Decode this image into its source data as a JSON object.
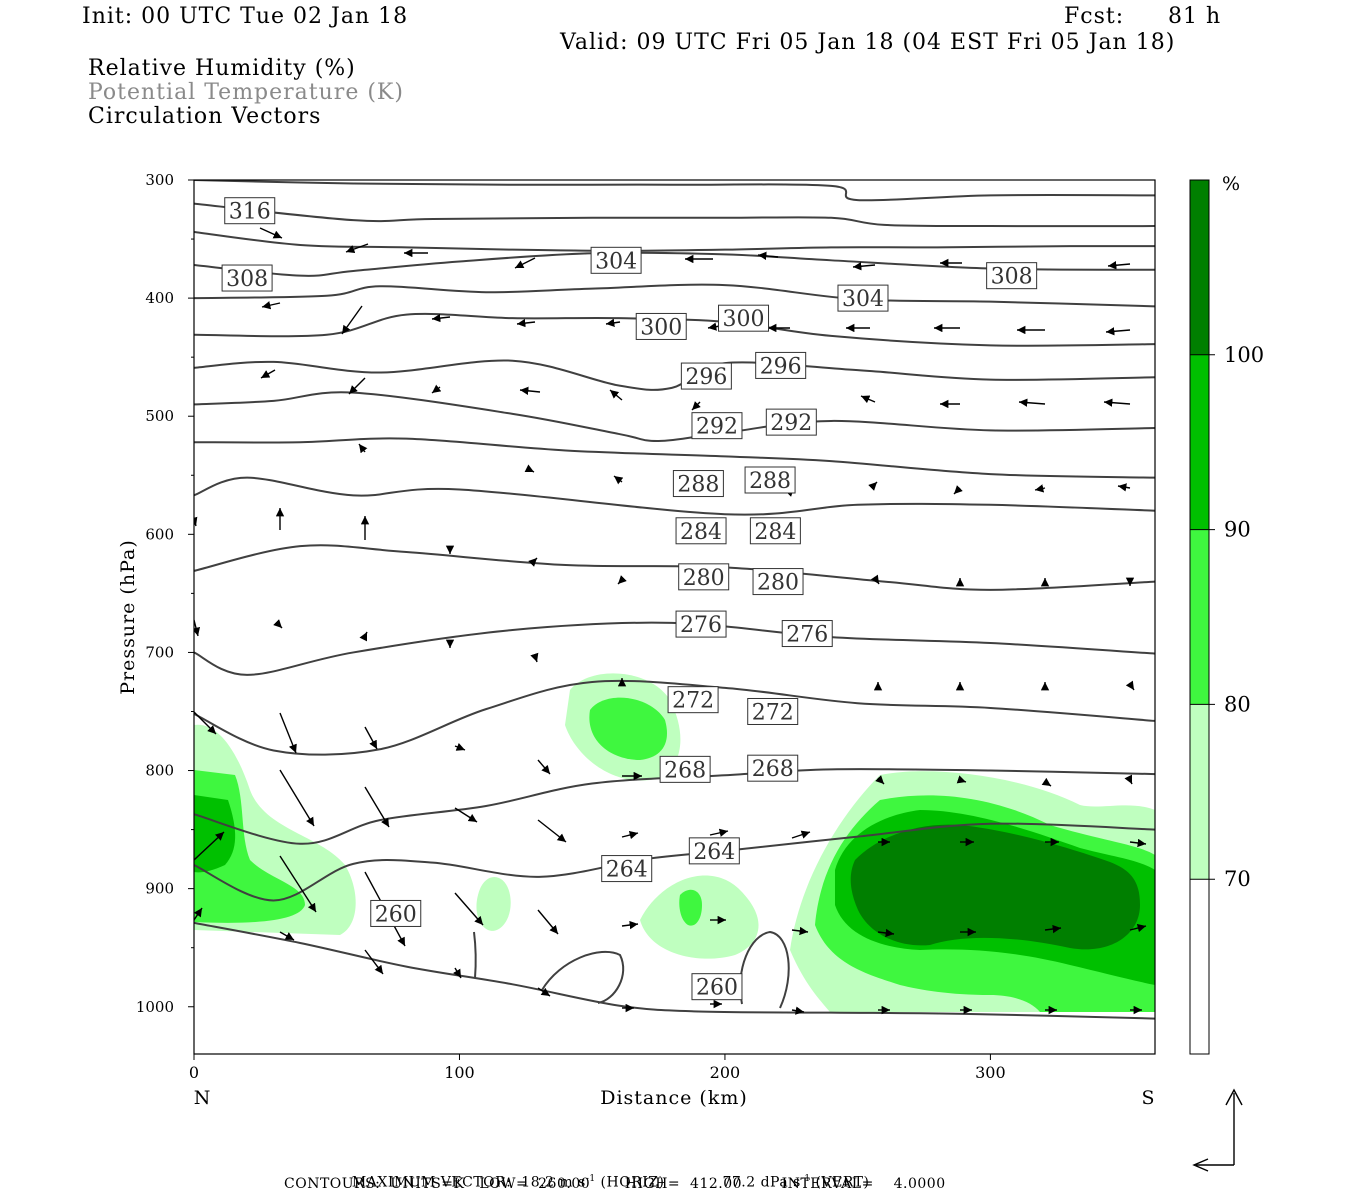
{
  "header": {
    "init": "Init: 00 UTC Tue 02 Jan 18",
    "fcst_label": "Fcst:",
    "fcst_value": "81 h",
    "valid": "Valid: 09 UTC Fri 05 Jan 18 (04 EST Fri 05 Jan 18)",
    "fields": [
      "Relative Humidity (%)",
      "Potential Temperature (K)",
      "Circulation Vectors"
    ]
  },
  "footer": {
    "line1_left": "MAXIMUM VECTOR:  18.2 m s",
    "line1_mid": " (HORIZ)",
    "line1_right": "77.2 dPa s",
    "line1_end": " (VERT)",
    "exp": "-1",
    "line2": "CONTOURS:  UNITS=K   LOW=  260.00       HIGH=  412.00        INTERVAL=    4.0000"
  },
  "colors": {
    "rh70": "#bfffbf",
    "rh80": "#3ff73f",
    "rh90": "#00c000",
    "rh100": "#007f00",
    "contour": "#404040",
    "muted_text": "#8a8a8a"
  },
  "chart_data": {
    "type": "cross-section contour",
    "xlabel": "Distance (km)",
    "ylabel": "Pressure (hPa)",
    "x_end_left": "N",
    "x_end_right": "S",
    "xlim": [
      0,
      362
    ],
    "ylim": [
      1040,
      300
    ],
    "x_ticks": [
      0,
      100,
      200,
      300
    ],
    "y_ticks": [
      300,
      400,
      500,
      600,
      700,
      800,
      900,
      1000
    ],
    "colorbar": {
      "unit": "%",
      "levels": [
        70,
        80,
        90,
        100
      ],
      "colors": [
        "#ffffff",
        "#bfffbf",
        "#3ff73f",
        "#00c000",
        "#007f00"
      ]
    },
    "contour_labels": [
      {
        "value": "316",
        "x": 21,
        "p": 326
      },
      {
        "value": "308",
        "x": 20,
        "p": 383
      },
      {
        "value": "304",
        "x": 159,
        "p": 368
      },
      {
        "value": "308",
        "x": 308,
        "p": 381
      },
      {
        "value": "304",
        "x": 252,
        "p": 400
      },
      {
        "value": "300",
        "x": 176,
        "p": 424
      },
      {
        "value": "300",
        "x": 207,
        "p": 417
      },
      {
        "value": "296",
        "x": 193,
        "p": 466
      },
      {
        "value": "296",
        "x": 221,
        "p": 457
      },
      {
        "value": "292",
        "x": 197,
        "p": 508
      },
      {
        "value": "292",
        "x": 225,
        "p": 505
      },
      {
        "value": "288",
        "x": 190,
        "p": 557
      },
      {
        "value": "288",
        "x": 217,
        "p": 554
      },
      {
        "value": "284",
        "x": 191,
        "p": 597
      },
      {
        "value": "284",
        "x": 219,
        "p": 597
      },
      {
        "value": "280",
        "x": 192,
        "p": 636
      },
      {
        "value": "280",
        "x": 220,
        "p": 640
      },
      {
        "value": "276",
        "x": 191,
        "p": 676
      },
      {
        "value": "276",
        "x": 231,
        "p": 684
      },
      {
        "value": "272",
        "x": 188,
        "p": 740
      },
      {
        "value": "272",
        "x": 218,
        "p": 750
      },
      {
        "value": "268",
        "x": 185,
        "p": 799
      },
      {
        "value": "268",
        "x": 218,
        "p": 798
      },
      {
        "value": "264",
        "x": 163,
        "p": 883
      },
      {
        "value": "264",
        "x": 196,
        "p": 868
      },
      {
        "value": "260",
        "x": 76,
        "p": 921
      },
      {
        "value": "260",
        "x": 197,
        "p": 983
      }
    ],
    "theta_contours_hPa": [
      {
        "x": [
          0,
          60,
          120,
          180,
          240,
          250,
          300,
          362
        ],
        "p": [
          300,
          303,
          304,
          304,
          305,
          317,
          313,
          313
        ]
      },
      {
        "x": [
          0,
          60,
          90,
          150,
          200,
          240,
          260,
          300,
          362
        ],
        "p": [
          320,
          334,
          333,
          332,
          332,
          332,
          338,
          339,
          339
        ]
      },
      {
        "x": [
          0,
          40,
          80,
          120,
          160,
          200,
          240,
          280,
          330,
          362
        ],
        "p": [
          344,
          355,
          357,
          359,
          360,
          359,
          357,
          357,
          356,
          356
        ]
      },
      {
        "x": [
          0,
          40,
          60,
          100,
          150,
          200,
          240,
          300,
          362
        ],
        "p": [
          372,
          381,
          377,
          369,
          362,
          363,
          368,
          375,
          376
        ]
      },
      {
        "x": [
          0,
          50,
          70,
          110,
          150,
          200,
          250,
          300,
          362
        ],
        "p": [
          400,
          398,
          390,
          395,
          392,
          389,
          401,
          403,
          407
        ]
      },
      {
        "x": [
          0,
          50,
          80,
          120,
          160,
          200,
          240,
          300,
          362
        ],
        "p": [
          431,
          431,
          414,
          417,
          417,
          420,
          432,
          440,
          439
        ]
      },
      {
        "x": [
          0,
          30,
          70,
          120,
          160,
          180,
          200,
          250,
          300,
          362
        ],
        "p": [
          459,
          454,
          463,
          453,
          474,
          476,
          455,
          461,
          469,
          467
        ]
      },
      {
        "x": [
          0,
          30,
          60,
          120,
          160,
          175,
          200,
          240,
          300,
          362
        ],
        "p": [
          490,
          487,
          480,
          498,
          515,
          521,
          514,
          504,
          512,
          510
        ]
      },
      {
        "x": [
          0,
          40,
          80,
          140,
          200,
          240,
          300,
          362
        ],
        "p": [
          522,
          522,
          519,
          529,
          534,
          538,
          549,
          552
        ]
      },
      {
        "x": [
          0,
          20,
          60,
          100,
          200,
          250,
          300,
          362
        ],
        "p": [
          567,
          552,
          567,
          562,
          583,
          575,
          575,
          580
        ]
      },
      {
        "x": [
          0,
          40,
          80,
          140,
          200,
          260,
          300,
          362
        ],
        "p": [
          631,
          610,
          615,
          626,
          628,
          640,
          647,
          640
        ]
      },
      {
        "x": [
          0,
          20,
          60,
          120,
          180,
          240,
          300,
          362
        ],
        "p": [
          700,
          719,
          700,
          681,
          675,
          687,
          692,
          701
        ]
      },
      {
        "x": [
          0,
          30,
          70,
          110,
          150,
          200,
          250,
          300,
          362
        ],
        "p": [
          752,
          783,
          782,
          748,
          725,
          730,
          743,
          747,
          758
        ]
      },
      {
        "x": [
          0,
          40,
          70,
          110,
          150,
          200,
          240,
          300,
          362
        ],
        "p": [
          837,
          862,
          842,
          830,
          811,
          804,
          799,
          800,
          803
        ]
      },
      {
        "x": [
          0,
          30,
          60,
          90,
          130,
          170,
          200,
          250,
          300,
          362
        ],
        "p": [
          880,
          910,
          879,
          878,
          890,
          875,
          868,
          856,
          845,
          850
        ]
      },
      {
        "x": [
          0,
          40,
          80,
          120,
          160,
          190,
          240,
          290,
          362
        ],
        "p": [
          929,
          946,
          966,
          981,
          999,
          1004,
          1005,
          1006,
          1010
        ]
      }
    ],
    "rh_regions_note": "RH >=70% shaded light green; 80% bright green; 90% green; 100% dark green"
  }
}
